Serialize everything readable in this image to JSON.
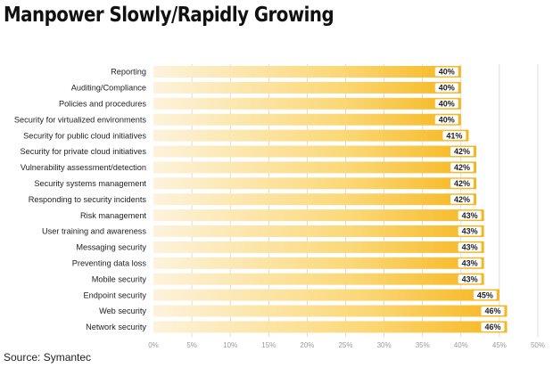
{
  "title": "Manpower Slowly/Rapidly Growing",
  "source": "Source: Symantec",
  "colors": {
    "bar_light": "#fdf3dc",
    "bar_dark": "#f6b61e",
    "label_box": "#ffffff",
    "grid": "#d6d6d6"
  },
  "chart_data": {
    "type": "bar",
    "orientation": "horizontal",
    "categories": [
      "Reporting",
      "Auditing/Compliance",
      "Policies and procedures",
      "Security for virtualized environments",
      "Security for public cloud initiatives",
      "Security for private cloud initiatives",
      "Vulnerability assessment/detection",
      "Security systems management",
      "Responding to security incidents",
      "Risk management",
      "User training and awareness",
      "Messaging security",
      "Preventing data loss",
      "Mobile security",
      "Endpoint security",
      "Web security",
      "Network security"
    ],
    "values": [
      40,
      40,
      40,
      40,
      41,
      42,
      42,
      42,
      42,
      43,
      43,
      43,
      43,
      43,
      45,
      46,
      46
    ],
    "value_labels": [
      "40%",
      "40%",
      "40%",
      "40%",
      "41%",
      "42%",
      "42%",
      "42%",
      "42%",
      "43%",
      "43%",
      "43%",
      "43%",
      "43%",
      "45%",
      "46%",
      "46%"
    ],
    "xlim": [
      0,
      50
    ],
    "x_ticks": [
      "0%",
      "5%",
      "10%",
      "15%",
      "20%",
      "25%",
      "30%",
      "35%",
      "40%",
      "45%",
      "50%"
    ],
    "grid": true,
    "legend": "none"
  }
}
